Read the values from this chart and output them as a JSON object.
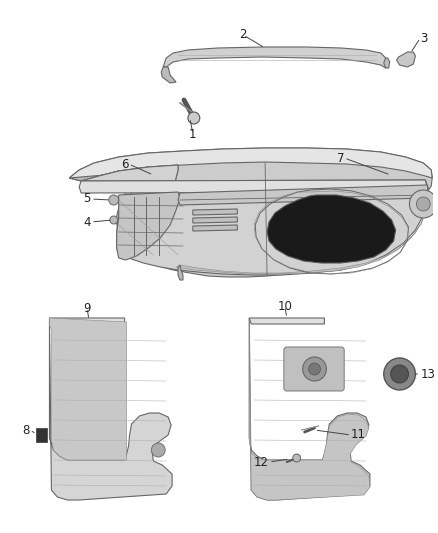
{
  "background_color": "#ffffff",
  "figure_width": 4.38,
  "figure_height": 5.33,
  "dpi": 100,
  "label_fontsize": 8.5,
  "label_color": "#222222",
  "line_color": "#666666"
}
